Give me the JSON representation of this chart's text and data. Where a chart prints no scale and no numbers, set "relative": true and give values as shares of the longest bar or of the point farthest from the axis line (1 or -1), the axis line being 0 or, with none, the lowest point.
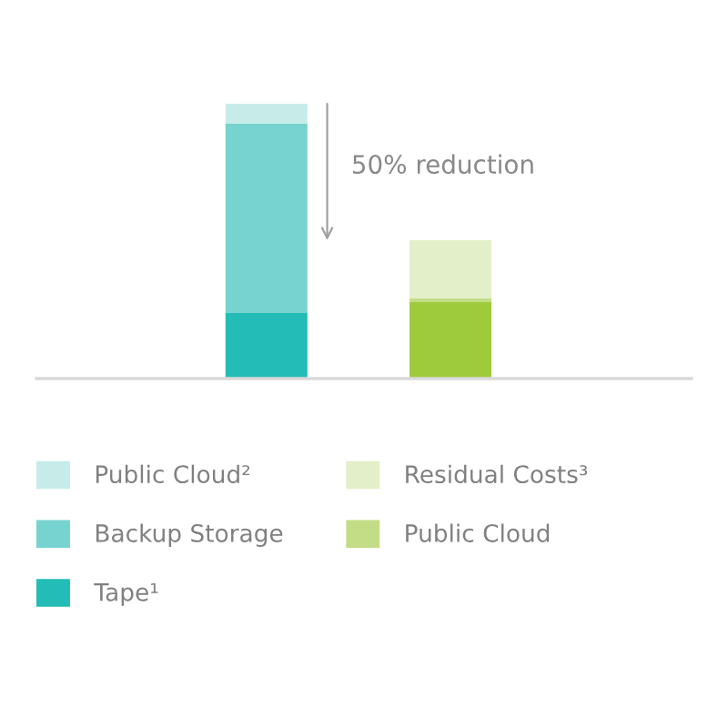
{
  "chart_data": {
    "type": "bar",
    "stacked": true,
    "relative": true,
    "legend": "bottom",
    "categories": [
      null,
      null
    ],
    "series": [
      {
        "name": "Tape¹",
        "color": "#23bcb6",
        "values": [
          0.238,
          null
        ]
      },
      {
        "name": "Backup Storage",
        "color": "#77d3cf",
        "values": [
          0.689,
          null
        ]
      },
      {
        "name": "Public Cloud²",
        "color": "#c6ebe8",
        "values": [
          0.073,
          null
        ]
      },
      {
        "color": "#9ecb3b",
        "values": [
          null,
          0.278
        ]
      },
      {
        "name": "Public Cloud",
        "color": "#c3dd87",
        "values": [
          null,
          0.013
        ]
      },
      {
        "name": "Residual Costs³",
        "color": "#e2efc8",
        "values": [
          null,
          0.212
        ]
      }
    ],
    "annotations": [
      "50% reduction"
    ]
  }
}
